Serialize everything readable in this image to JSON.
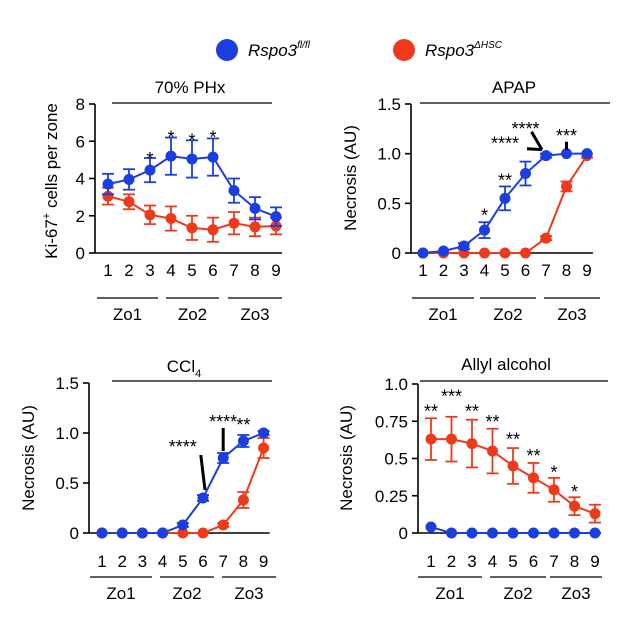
{
  "legend": [
    {
      "label": "Rspo3",
      "sup": "fl/fl",
      "color": "#1a3ee0"
    },
    {
      "label": "Rspo3",
      "sup": "ΔHSC",
      "color": "#ee3a1b"
    }
  ],
  "colors": {
    "blue": "#1a3ee0",
    "red": "#ee3a1b"
  },
  "zones": [
    "Zo1",
    "Zo2",
    "Zo3"
  ],
  "chart_data": [
    {
      "type": "line",
      "title": "70% PHx",
      "ylabel": "Ki-67+ cells per zone",
      "ylabel_main": "Ki-67",
      "ylabel_sup": "+",
      "ylabel_rest": " cells per zone",
      "x": [
        1,
        2,
        3,
        4,
        5,
        6,
        7,
        8,
        9
      ],
      "ylim": [
        0,
        8
      ],
      "yticks": [
        0,
        2,
        4,
        6,
        8
      ],
      "ytick_labels": [
        "0",
        "2",
        "4",
        "6",
        "8"
      ],
      "series": [
        {
          "name": "Rspo3 fl/fl",
          "color": "#1a3ee0",
          "values": [
            3.7,
            3.95,
            4.45,
            5.2,
            5.05,
            5.15,
            3.35,
            2.4,
            1.95
          ],
          "err": [
            0.55,
            0.55,
            0.65,
            1.0,
            1.0,
            1.0,
            0.65,
            0.6,
            0.5
          ]
        },
        {
          "name": "Rspo3 ΔHSC",
          "color": "#ee3a1b",
          "values": [
            3.05,
            2.75,
            2.05,
            1.85,
            1.35,
            1.25,
            1.6,
            1.4,
            1.45
          ],
          "err": [
            0.45,
            0.4,
            0.5,
            0.65,
            0.65,
            0.65,
            0.6,
            0.5,
            0.45
          ]
        }
      ],
      "annotations": [
        {
          "x": 3,
          "text": "*",
          "y": 5.15
        },
        {
          "x": 4,
          "text": "*",
          "y": 6.3
        },
        {
          "x": 5,
          "text": "*",
          "y": 6.15
        },
        {
          "x": 6,
          "text": "*",
          "y": 6.3
        }
      ],
      "zones": [
        "Zo1",
        "Zo2",
        "Zo3"
      ]
    },
    {
      "type": "line",
      "title": "APAP",
      "ylabel": "Necrosis (AU)",
      "x": [
        1,
        2,
        3,
        4,
        5,
        6,
        7,
        8,
        9
      ],
      "ylim": [
        0,
        1.5
      ],
      "yticks": [
        0,
        0.5,
        1.0,
        1.5
      ],
      "ytick_labels": [
        "0",
        "0.5",
        "1.0",
        "1.5"
      ],
      "series": [
        {
          "name": "Rspo3 fl/fl",
          "color": "#1a3ee0",
          "values": [
            0.0,
            0.02,
            0.07,
            0.23,
            0.55,
            0.8,
            0.98,
            1.0,
            1.0
          ],
          "err": [
            0.0,
            0.0,
            0.03,
            0.08,
            0.12,
            0.12,
            0.02,
            0.0,
            0.0
          ]
        },
        {
          "name": "Rspo3 ΔHSC",
          "color": "#ee3a1b",
          "values": [
            0.0,
            0.0,
            0.0,
            0.0,
            0.0,
            0.0,
            0.15,
            0.67,
            0.98
          ],
          "err": [
            0,
            0,
            0,
            0,
            0,
            0,
            0.02,
            0.05,
            0.02
          ]
        }
      ],
      "annotations": [
        {
          "x": 4,
          "text": "*",
          "y": 0.4
        },
        {
          "x": 5,
          "text": "**",
          "y": 0.75
        },
        {
          "x": 5,
          "text": "****",
          "y": 1.12
        },
        {
          "x": 6,
          "text": "****",
          "y": 1.27
        },
        {
          "x": 8,
          "text": "***",
          "y": 1.2
        }
      ],
      "zones": [
        "Zo1",
        "Zo2",
        "Zo3"
      ]
    },
    {
      "type": "line",
      "title": "CCl4",
      "title_main": "CCl",
      "title_sub": "4",
      "ylabel": "Necrosis (AU)",
      "x": [
        1,
        2,
        3,
        4,
        5,
        6,
        7,
        8,
        9
      ],
      "ylim": [
        0,
        1.5
      ],
      "yticks": [
        0,
        0.5,
        1.0,
        1.5
      ],
      "ytick_labels": [
        "0",
        "0.5",
        "1.0",
        "1.5"
      ],
      "series": [
        {
          "name": "Rspo3 fl/fl",
          "color": "#1a3ee0",
          "values": [
            0.0,
            0.0,
            0.0,
            0.0,
            0.08,
            0.35,
            0.75,
            0.92,
            1.0
          ],
          "err": [
            0,
            0,
            0,
            0,
            0.02,
            0.03,
            0.05,
            0.06,
            0.02
          ]
        },
        {
          "name": "Rspo3 ΔHSC",
          "color": "#ee3a1b",
          "values": [
            0.0,
            0.0,
            0.0,
            0.0,
            0.0,
            0.0,
            0.08,
            0.33,
            0.85
          ],
          "err": [
            0,
            0,
            0,
            0,
            0,
            0,
            0.02,
            0.08,
            0.1
          ]
        }
      ],
      "annotations": [
        {
          "x": 5,
          "text": "****",
          "y": 0.88
        },
        {
          "x": 7,
          "text": "****",
          "y": 1.13
        },
        {
          "x": 8,
          "text": "**",
          "y": 1.1
        }
      ],
      "zones": [
        "Zo1",
        "Zo2",
        "Zo3"
      ]
    },
    {
      "type": "line",
      "title": "Allyl alcohol",
      "ylabel": "Necrosis (AU)",
      "x": [
        1,
        2,
        3,
        4,
        5,
        6,
        7,
        8,
        9
      ],
      "ylim": [
        0,
        1.0
      ],
      "yticks": [
        0,
        0.25,
        0.5,
        0.75,
        1.0
      ],
      "ytick_labels": [
        "0",
        "0.25",
        "0.5",
        "0.75",
        "1.0"
      ],
      "series": [
        {
          "name": "Rspo3 fl/fl",
          "color": "#1a3ee0",
          "values": [
            0.04,
            0.0,
            0.0,
            0.0,
            0.0,
            0.0,
            0.0,
            0.0,
            0.0
          ],
          "err": [
            0,
            0,
            0,
            0,
            0,
            0,
            0,
            0,
            0
          ]
        },
        {
          "name": "Rspo3 ΔHSC",
          "color": "#ee3a1b",
          "values": [
            0.63,
            0.63,
            0.6,
            0.55,
            0.45,
            0.37,
            0.29,
            0.18,
            0.13
          ],
          "err": [
            0.14,
            0.15,
            0.16,
            0.15,
            0.12,
            0.1,
            0.08,
            0.06,
            0.06
          ]
        }
      ],
      "annotations": [
        {
          "x": 1,
          "text": "**",
          "y": 0.83
        },
        {
          "x": 2,
          "text": "***",
          "y": 0.93
        },
        {
          "x": 3,
          "text": "**",
          "y": 0.83
        },
        {
          "x": 4,
          "text": "**",
          "y": 0.76
        },
        {
          "x": 5,
          "text": "**",
          "y": 0.64
        },
        {
          "x": 6,
          "text": "**",
          "y": 0.53
        },
        {
          "x": 7,
          "text": "*",
          "y": 0.42
        },
        {
          "x": 8,
          "text": "*",
          "y": 0.29
        }
      ],
      "zones": [
        "Zo1",
        "Zo2",
        "Zo3"
      ]
    }
  ]
}
